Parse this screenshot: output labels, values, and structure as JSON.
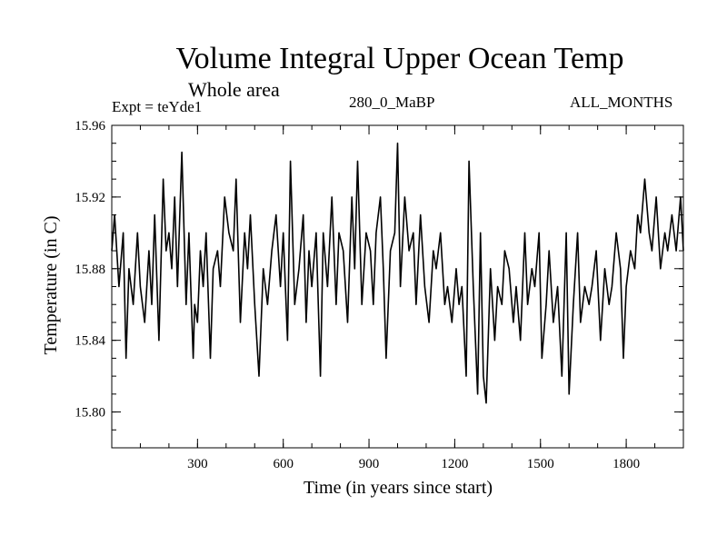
{
  "chart_data": {
    "type": "line",
    "title": "Volume Integral Upper Ocean Temp",
    "subtitle": "Whole area",
    "experiment_label": "Expt = teYde1",
    "period_label": "280_0_MaBP",
    "season_label": "ALL_MONTHS",
    "xlabel": "Time (in years since start)",
    "ylabel": "Temperature (in C)",
    "xlim": [
      0,
      2000
    ],
    "ylim": [
      15.78,
      15.96
    ],
    "x_ticks": [
      300,
      600,
      900,
      1200,
      1500,
      1800
    ],
    "x_tick_labels": [
      "300",
      "600",
      "900",
      "1200",
      "1500",
      "1800"
    ],
    "y_ticks": [
      15.8,
      15.84,
      15.88,
      15.92,
      15.96
    ],
    "y_tick_labels": [
      "15.80",
      "15.84",
      "15.88",
      "15.92",
      "15.96"
    ],
    "grid": false,
    "series": [
      {
        "name": "Volume Integral Upper Ocean Temp",
        "x": [
          0,
          10,
          25,
          40,
          50,
          60,
          75,
          90,
          100,
          115,
          130,
          140,
          150,
          165,
          180,
          190,
          200,
          210,
          220,
          230,
          245,
          260,
          270,
          285,
          290,
          300,
          310,
          320,
          330,
          345,
          355,
          370,
          380,
          395,
          410,
          425,
          435,
          450,
          465,
          475,
          485,
          500,
          515,
          530,
          545,
          560,
          575,
          590,
          600,
          615,
          625,
          640,
          655,
          670,
          680,
          690,
          700,
          715,
          730,
          740,
          755,
          770,
          785,
          795,
          810,
          825,
          840,
          850,
          860,
          875,
          890,
          905,
          915,
          925,
          940,
          950,
          960,
          975,
          990,
          1000,
          1010,
          1025,
          1040,
          1055,
          1065,
          1080,
          1095,
          1110,
          1125,
          1135,
          1150,
          1165,
          1175,
          1190,
          1205,
          1215,
          1225,
          1240,
          1250,
          1265,
          1280,
          1290,
          1300,
          1310,
          1325,
          1340,
          1350,
          1365,
          1375,
          1390,
          1405,
          1415,
          1430,
          1445,
          1455,
          1470,
          1480,
          1495,
          1505,
          1520,
          1530,
          1545,
          1560,
          1575,
          1590,
          1600,
          1615,
          1630,
          1640,
          1655,
          1670,
          1680,
          1695,
          1710,
          1725,
          1740,
          1750,
          1765,
          1780,
          1790,
          1800,
          1815,
          1830,
          1840,
          1850,
          1865,
          1880,
          1890,
          1905,
          1920,
          1935,
          1945,
          1960,
          1975,
          1990,
          2000
        ],
        "y": [
          15.89,
          15.91,
          15.87,
          15.9,
          15.83,
          15.88,
          15.86,
          15.9,
          15.87,
          15.85,
          15.89,
          15.86,
          15.91,
          15.84,
          15.93,
          15.89,
          15.9,
          15.88,
          15.92,
          15.87,
          15.945,
          15.86,
          15.9,
          15.83,
          15.86,
          15.85,
          15.89,
          15.87,
          15.9,
          15.83,
          15.88,
          15.89,
          15.87,
          15.92,
          15.9,
          15.89,
          15.93,
          15.85,
          15.9,
          15.88,
          15.91,
          15.86,
          15.82,
          15.88,
          15.86,
          15.89,
          15.91,
          15.87,
          15.9,
          15.84,
          15.94,
          15.86,
          15.88,
          15.91,
          15.85,
          15.89,
          15.87,
          15.9,
          15.82,
          15.9,
          15.87,
          15.92,
          15.86,
          15.9,
          15.89,
          15.85,
          15.92,
          15.88,
          15.94,
          15.86,
          15.9,
          15.89,
          15.86,
          15.9,
          15.92,
          15.88,
          15.83,
          15.89,
          15.9,
          15.95,
          15.87,
          15.92,
          15.89,
          15.9,
          15.86,
          15.91,
          15.87,
          15.85,
          15.89,
          15.88,
          15.9,
          15.86,
          15.87,
          15.85,
          15.88,
          15.86,
          15.87,
          15.82,
          15.94,
          15.87,
          15.81,
          15.9,
          15.82,
          15.805,
          15.88,
          15.84,
          15.87,
          15.86,
          15.89,
          15.88,
          15.85,
          15.87,
          15.84,
          15.9,
          15.86,
          15.88,
          15.87,
          15.9,
          15.83,
          15.86,
          15.89,
          15.85,
          15.87,
          15.82,
          15.9,
          15.81,
          15.86,
          15.9,
          15.85,
          15.87,
          15.86,
          15.87,
          15.89,
          15.84,
          15.88,
          15.86,
          15.87,
          15.9,
          15.88,
          15.83,
          15.87,
          15.89,
          15.88,
          15.91,
          15.9,
          15.93,
          15.9,
          15.89,
          15.92,
          15.88,
          15.9,
          15.89,
          15.91,
          15.89,
          15.92,
          15.89
        ]
      }
    ]
  }
}
